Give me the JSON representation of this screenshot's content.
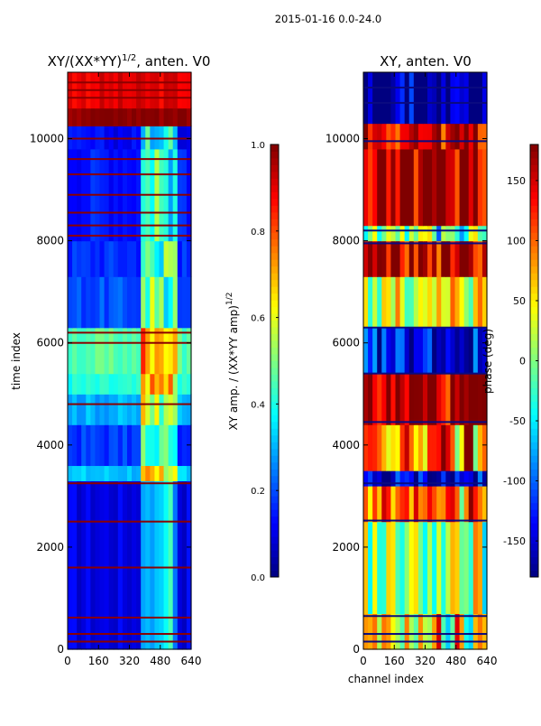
{
  "suptitle": "2015-01-16 0.0-24.0",
  "chart_data": [
    {
      "type": "heatmap",
      "title": "XY/(XX*YY)^1/2, anten. V0",
      "title_main": "XY/(XX*YY)",
      "title_exp": "1/2",
      "title_tail": ", anten. V0",
      "xlabel": "",
      "ylabel": "time index",
      "xlim": [
        0,
        640
      ],
      "ylim": [
        0,
        11300
      ],
      "xticks": [
        0,
        160,
        320,
        480,
        640
      ],
      "yticks": [
        0,
        2000,
        4000,
        6000,
        8000,
        10000
      ],
      "colormap": "jet",
      "colorbar": {
        "label_main": "XY amp. / (XX*YY amp)",
        "label_exp": "1/2",
        "range": [
          0.0,
          1.0
        ],
        "ticks": [
          "0.0",
          "0.2",
          "0.4",
          "0.6",
          "0.8",
          "1.0"
        ]
      },
      "bands": [
        {
          "y0": 0,
          "y1": 3300,
          "value": 0.1
        },
        {
          "y0": 3300,
          "y1": 3600,
          "value": 0.32
        },
        {
          "y0": 3600,
          "y1": 4400,
          "value": 0.18
        },
        {
          "y0": 4400,
          "y1": 5000,
          "value": 0.3
        },
        {
          "y0": 5000,
          "y1": 5400,
          "value": 0.4
        },
        {
          "y0": 5400,
          "y1": 6300,
          "value": 0.46
        },
        {
          "y0": 6300,
          "y1": 7300,
          "value": 0.2
        },
        {
          "y0": 7300,
          "y1": 8000,
          "value": 0.17
        },
        {
          "y0": 8000,
          "y1": 9800,
          "value": 0.15
        },
        {
          "y0": 9800,
          "y1": 10250,
          "value": 0.12
        },
        {
          "y0": 10250,
          "y1": 10600,
          "value": 1.0
        },
        {
          "y0": 10600,
          "y1": 11300,
          "value": 0.9
        }
      ],
      "vertical_feature": {
        "x0": 390,
        "x1": 560,
        "boost": 0.28
      },
      "flag_rows": [
        150,
        300,
        620,
        1600,
        2500,
        3250,
        4800,
        6000,
        6200,
        8100,
        8300,
        8550,
        8900,
        9300,
        9600,
        10000,
        10800,
        10950,
        11100
      ]
    },
    {
      "type": "heatmap",
      "title": "XY, anten. V0",
      "xlabel": "channel index",
      "ylabel": "",
      "xlim": [
        0,
        640
      ],
      "ylim": [
        0,
        11300
      ],
      "xticks": [
        0,
        160,
        320,
        480,
        640
      ],
      "yticks": [
        0,
        2000,
        4000,
        6000,
        8000,
        10000
      ],
      "colormap": "jet",
      "colorbar": {
        "label": "phase (deg)",
        "range": [
          -180,
          180
        ],
        "ticks": [
          "-150",
          "-100",
          "-50",
          "0",
          "50",
          "100",
          "150"
        ],
        "tick_values": [
          -150,
          -100,
          -50,
          0,
          50,
          100,
          150
        ]
      },
      "bands": [
        {
          "y0": 0,
          "y1": 700,
          "value": 40
        },
        {
          "y0": 700,
          "y1": 2500,
          "value": 10
        },
        {
          "y0": 2500,
          "y1": 3200,
          "value": 90
        },
        {
          "y0": 3200,
          "y1": 3500,
          "value": -150
        },
        {
          "y0": 3500,
          "y1": 4400,
          "value": 95
        },
        {
          "y0": 4400,
          "y1": 5400,
          "value": 160
        },
        {
          "y0": 5400,
          "y1": 6300,
          "value": -140
        },
        {
          "y0": 6300,
          "y1": 7300,
          "value": 30
        },
        {
          "y0": 7300,
          "y1": 8000,
          "value": 150
        },
        {
          "y0": 8000,
          "y1": 8300,
          "value": 0
        },
        {
          "y0": 8300,
          "y1": 9800,
          "value": 165
        },
        {
          "y0": 9800,
          "y1": 10300,
          "value": 150
        },
        {
          "y0": 10300,
          "y1": 11300,
          "value": -170
        }
      ],
      "flag_rows": [
        150,
        300,
        650,
        2520,
        3250,
        4450,
        5400,
        6300,
        7950,
        8200,
        9950,
        10700,
        11000
      ]
    }
  ]
}
